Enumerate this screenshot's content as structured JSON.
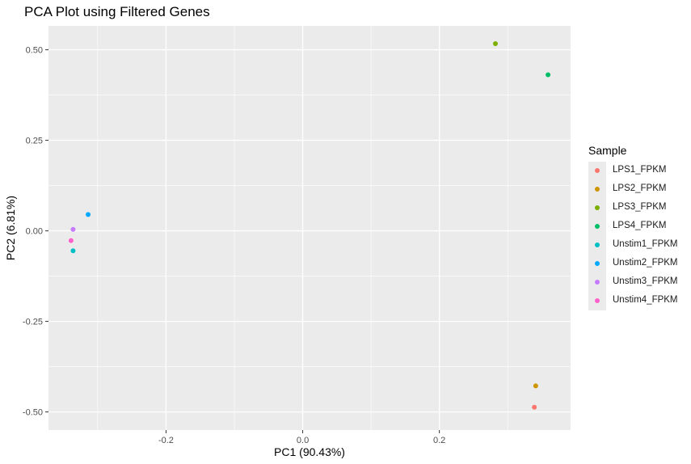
{
  "chart_data": {
    "type": "scatter",
    "title": "PCA Plot using Filtered Genes",
    "xlabel": "PC1 (90.43%)",
    "ylabel": "PC2 (6.81%)",
    "xlim": [
      -0.372,
      0.392
    ],
    "ylim": [
      -0.55,
      0.566
    ],
    "xticks": [
      -0.2,
      0.0,
      0.2
    ],
    "xtick_labels": [
      "-0.2",
      "0.0",
      "0.2"
    ],
    "yticks": [
      0.5,
      0.25,
      0.0,
      -0.25,
      -0.5
    ],
    "ytick_labels": [
      "0.50",
      "0.25",
      "0.00",
      "-0.25",
      "-0.50"
    ],
    "grid": true,
    "legend_title": "Sample",
    "legend_position": "right",
    "series": [
      {
        "name": "LPS1_FPKM",
        "color": "#F8766D",
        "x": 0.339,
        "y": -0.487
      },
      {
        "name": "LPS2_FPKM",
        "color": "#CD9600",
        "x": 0.341,
        "y": -0.428
      },
      {
        "name": "LPS3_FPKM",
        "color": "#7CAE00",
        "x": 0.282,
        "y": 0.517
      },
      {
        "name": "LPS4_FPKM",
        "color": "#00BE67",
        "x": 0.359,
        "y": 0.431
      },
      {
        "name": "Unstim1_FPKM",
        "color": "#00BFC4",
        "x": -0.336,
        "y": -0.055
      },
      {
        "name": "Unstim2_FPKM",
        "color": "#00A9FF",
        "x": -0.314,
        "y": 0.045
      },
      {
        "name": "Unstim3_FPKM",
        "color": "#C77CFF",
        "x": -0.336,
        "y": 0.004
      },
      {
        "name": "Unstim4_FPKM",
        "color": "#FF61CC",
        "x": -0.339,
        "y": -0.027
      }
    ]
  }
}
